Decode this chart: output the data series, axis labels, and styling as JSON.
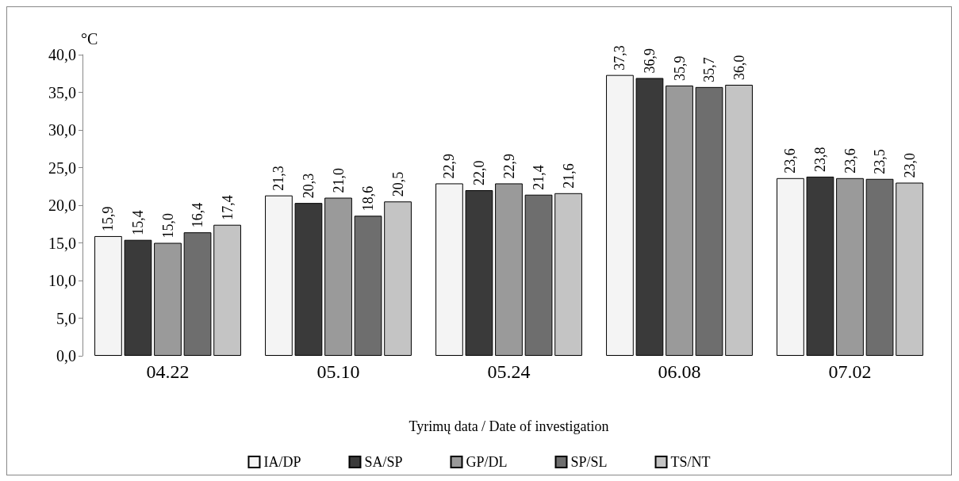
{
  "chart_data": {
    "type": "bar",
    "ylabel": "°C",
    "xlabel": "Tyrimų data / Date of investigation",
    "categories": [
      "04.22",
      "05.10",
      "05.24",
      "06.08",
      "07.02"
    ],
    "series": [
      {
        "name": "IA/DP",
        "color": "#f4f4f4",
        "values": [
          15.9,
          21.3,
          22.9,
          37.3,
          23.6
        ],
        "value_labels": [
          "15,9",
          "21,3",
          "22,9",
          "37,3",
          "23,6"
        ]
      },
      {
        "name": "SA/SP",
        "color": "#3a3a3a",
        "values": [
          15.4,
          20.3,
          22.0,
          36.9,
          23.8
        ],
        "value_labels": [
          "15,4",
          "20,3",
          "22,0",
          "36,9",
          "23,8"
        ]
      },
      {
        "name": "GP/DL",
        "color": "#9a9a9a",
        "values": [
          15.0,
          21.0,
          22.9,
          35.9,
          23.6
        ],
        "value_labels": [
          "15,0",
          "21,0",
          "22,9",
          "35,9",
          "23,6"
        ]
      },
      {
        "name": "SP/SL",
        "color": "#6e6e6e",
        "values": [
          16.4,
          18.6,
          21.4,
          35.7,
          23.5
        ],
        "value_labels": [
          "16,4",
          "18,6",
          "21,4",
          "35,7",
          "23,5"
        ]
      },
      {
        "name": "TS/NT",
        "color": "#c4c4c4",
        "values": [
          17.4,
          20.5,
          21.6,
          36.0,
          23.0
        ],
        "value_labels": [
          "17,4",
          "20,5",
          "21,6",
          "36,0",
          "23,0"
        ]
      }
    ],
    "ylim": [
      0,
      40
    ],
    "yticks": [
      {
        "value": 0,
        "label": "0,0"
      },
      {
        "value": 5,
        "label": "5,0"
      },
      {
        "value": 10,
        "label": "10,0"
      },
      {
        "value": 15,
        "label": "15,0"
      },
      {
        "value": 20,
        "label": "20,0"
      },
      {
        "value": 25,
        "label": "25,0"
      },
      {
        "value": 30,
        "label": "30,0"
      },
      {
        "value": 35,
        "label": "35,0"
      },
      {
        "value": 40,
        "label": "40,0"
      }
    ],
    "grid": false,
    "legend": "bottom"
  }
}
